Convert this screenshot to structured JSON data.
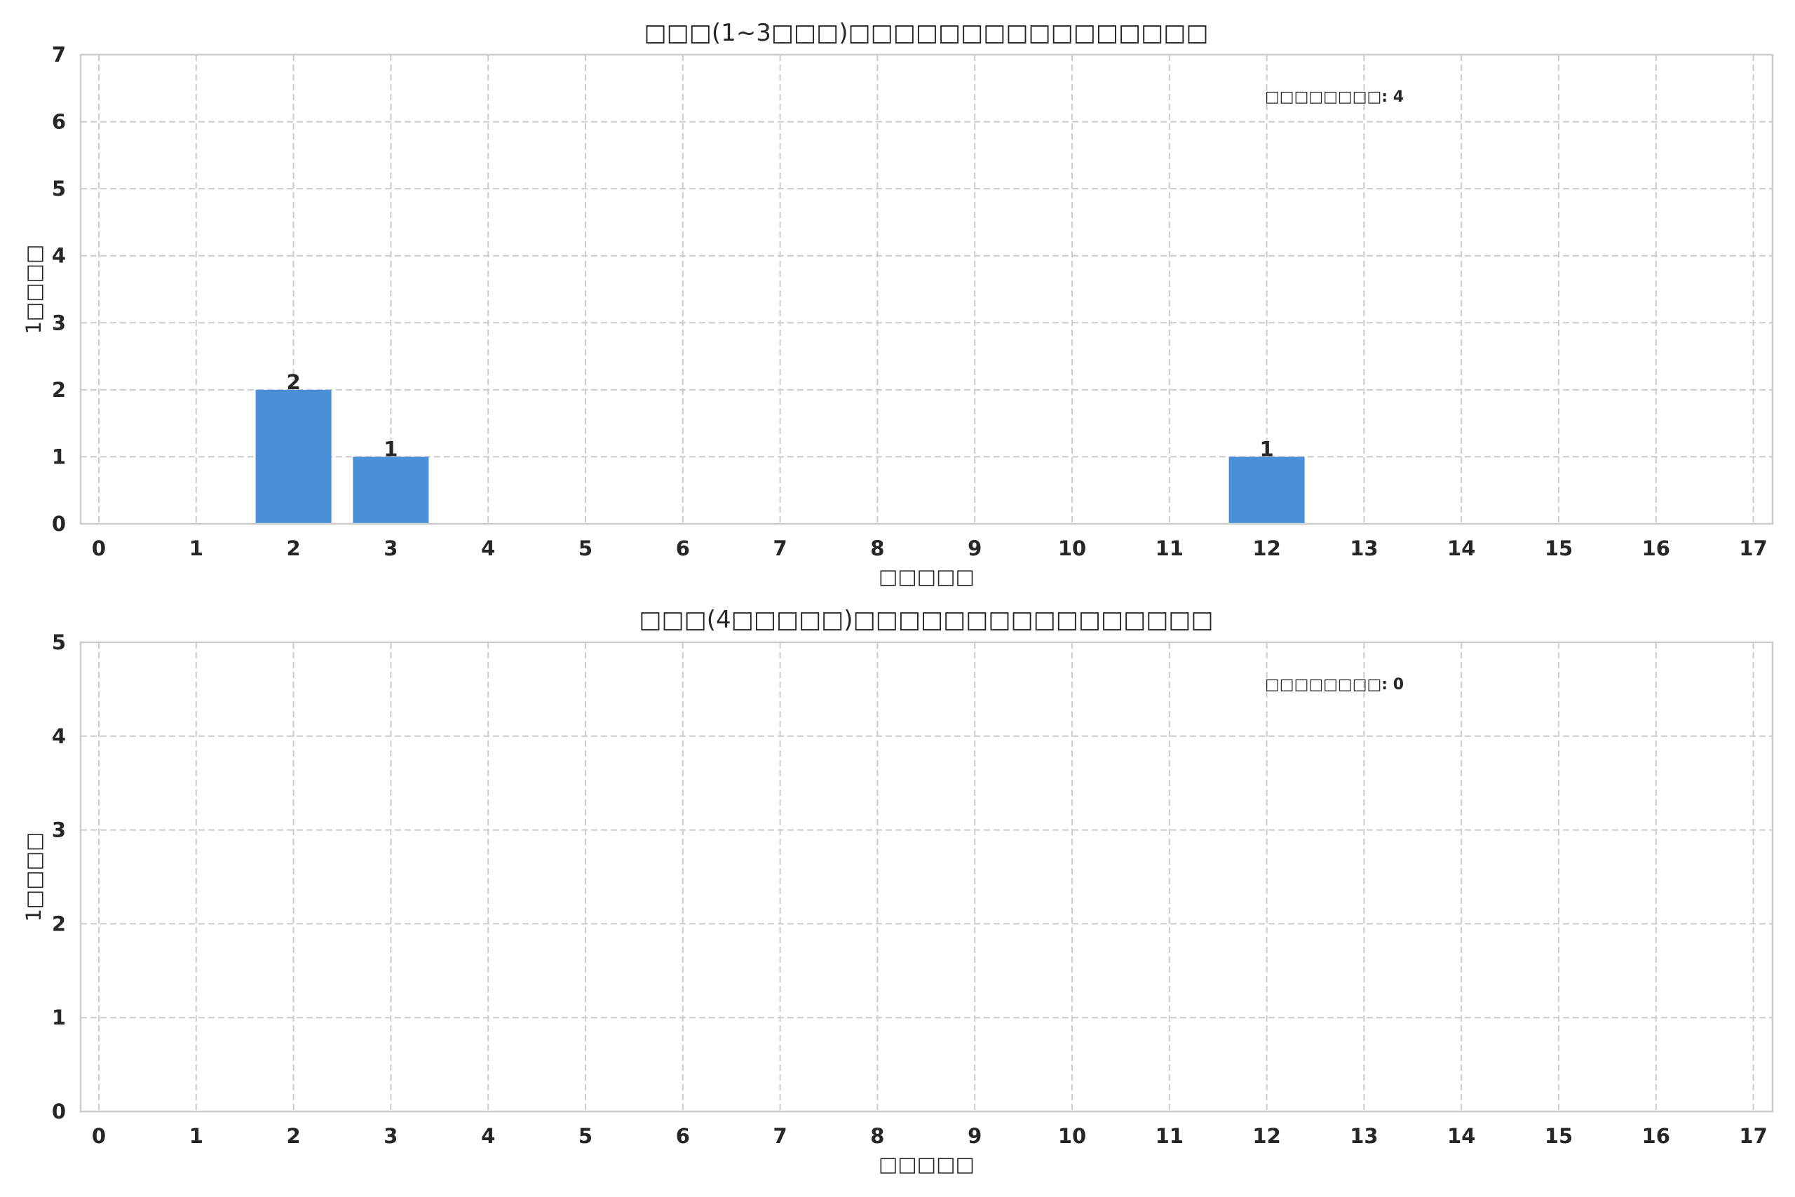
{
  "chart_data": [
    {
      "type": "bar",
      "title": "□□□(1~3□□□)□□□□□□□□□□□□□□□□",
      "xlabel": "□□□□□",
      "ylabel": "1□□□□",
      "categories": [
        "0",
        "1",
        "2",
        "3",
        "4",
        "5",
        "6",
        "7",
        "8",
        "9",
        "10",
        "11",
        "12",
        "13",
        "14",
        "15",
        "16",
        "17"
      ],
      "values": [
        0,
        0,
        2,
        1,
        0,
        0,
        0,
        0,
        0,
        0,
        0,
        0,
        1,
        0,
        0,
        0,
        0,
        0
      ],
      "ylim": [
        0,
        7
      ],
      "yticks": [
        "0",
        "1",
        "2",
        "3",
        "4",
        "5",
        "6",
        "7"
      ],
      "annotation": "□□□□□□□□: 4",
      "grid": true,
      "bar_color": "#4a90d9"
    },
    {
      "type": "bar",
      "title": "□□□(4□□□□□)□□□□□□□□□□□□□□□□",
      "xlabel": "□□□□□",
      "ylabel": "1□□□□",
      "categories": [
        "0",
        "1",
        "2",
        "3",
        "4",
        "5",
        "6",
        "7",
        "8",
        "9",
        "10",
        "11",
        "12",
        "13",
        "14",
        "15",
        "16",
        "17"
      ],
      "values": [
        0,
        0,
        0,
        0,
        0,
        0,
        0,
        0,
        0,
        0,
        0,
        0,
        0,
        0,
        0,
        0,
        0,
        0
      ],
      "ylim": [
        0,
        5
      ],
      "yticks": [
        "0",
        "1",
        "2",
        "3",
        "4",
        "5"
      ],
      "annotation": "□□□□□□□□: 0",
      "grid": true,
      "bar_color": "#4a90d9"
    }
  ]
}
